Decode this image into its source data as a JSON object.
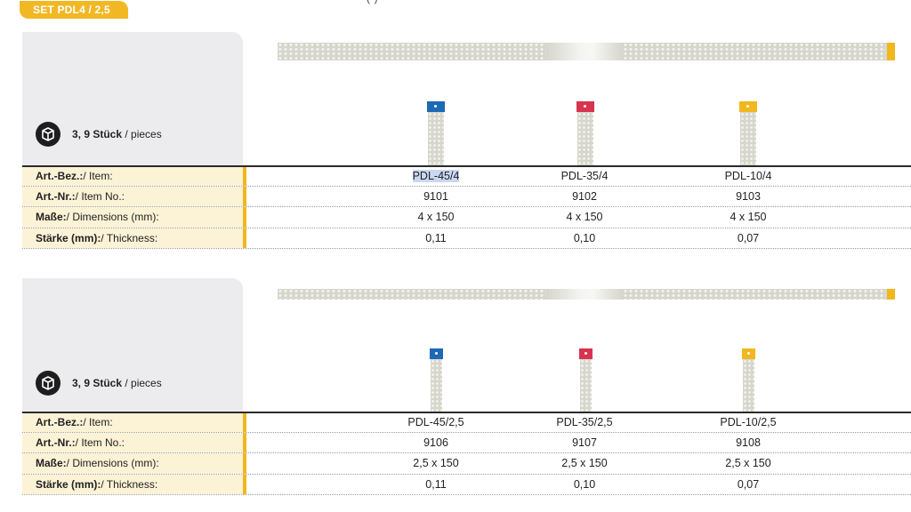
{
  "set_badge": "SET PDL4 / 2,5",
  "top_fragment": "(*)",
  "colors": {
    "blue": "#1d69b4",
    "red": "#d8334f",
    "yellow": "#f0b81c",
    "accent": "#f2b824"
  },
  "sections": [
    {
      "pieces_bold": "3, 9 Stück",
      "pieces_rest": " / pieces",
      "tools": [
        {
          "item": "PDL-45/4",
          "color": "blue"
        },
        {
          "item": "PDL-35/4",
          "color": "red"
        },
        {
          "item": "PDL-10/4",
          "color": "yellow"
        }
      ],
      "rows": [
        {
          "label_bold": "Art.-Bez.:",
          "label_rest": " / Item:",
          "values": [
            "PDL-45/4",
            "PDL-35/4",
            "PDL-10/4"
          ]
        },
        {
          "label_bold": "Art.-Nr.:",
          "label_rest": " / Item No.:",
          "values": [
            "9101",
            "9102",
            "9103"
          ]
        },
        {
          "label_bold": "Maße:",
          "label_rest": " / Dimensions (mm):",
          "values": [
            "4 x 150",
            "4 x 150",
            "4 x 150"
          ]
        },
        {
          "label_bold": "Stärke (mm):",
          "label_rest": " / Thickness:",
          "values": [
            "0,11",
            "0,10",
            "0,07"
          ]
        }
      ]
    },
    {
      "pieces_bold": "3, 9 Stück",
      "pieces_rest": " / pieces",
      "tools": [
        {
          "item": "PDL-45/2,5",
          "color": "blue"
        },
        {
          "item": "PDL-35/2,5",
          "color": "red"
        },
        {
          "item": "PDL-10/2,5",
          "color": "yellow"
        }
      ],
      "rows": [
        {
          "label_bold": "Art.-Bez.:",
          "label_rest": " / Item:",
          "values": [
            "PDL-45/2,5",
            "PDL-35/2,5",
            "PDL-10/2,5"
          ]
        },
        {
          "label_bold": "Art.-Nr.:",
          "label_rest": " / Item No.:",
          "values": [
            "9106",
            "9107",
            "9108"
          ]
        },
        {
          "label_bold": "Maße:",
          "label_rest": " / Dimensions (mm):",
          "values": [
            "2,5 x 150",
            "2,5 x 150",
            "2,5 x 150"
          ]
        },
        {
          "label_bold": "Stärke (mm):",
          "label_rest": " / Thickness:",
          "values": [
            "0,11",
            "0,10",
            "0,07"
          ]
        }
      ]
    }
  ]
}
